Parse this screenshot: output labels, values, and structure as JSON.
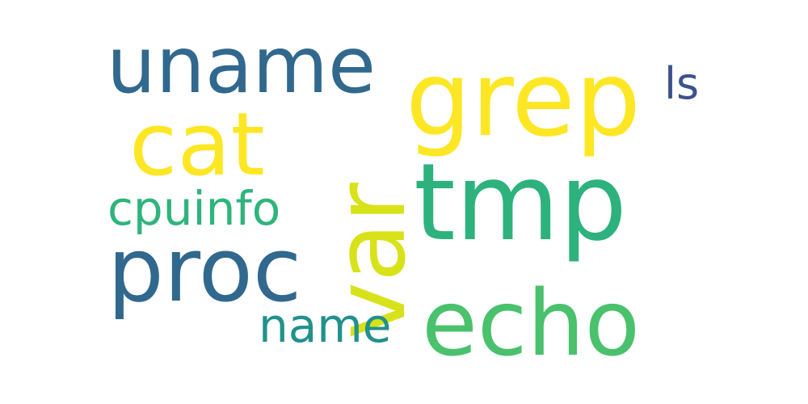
{
  "word_cloud": {
    "words": [
      {
        "text": "uname",
        "color": "#31688e"
      },
      {
        "text": "cat",
        "color": "#fde725"
      },
      {
        "text": "grep",
        "color": "#fde725"
      },
      {
        "text": "ls",
        "color": "#3b528b"
      },
      {
        "text": "var",
        "color": "#d8e219"
      },
      {
        "text": "cpuinfo",
        "color": "#2fb47c"
      },
      {
        "text": "tmp",
        "color": "#2db27d"
      },
      {
        "text": "proc",
        "color": "#31688e"
      },
      {
        "text": "name",
        "color": "#21918c"
      },
      {
        "text": "echo",
        "color": "#4ac16d"
      }
    ]
  }
}
